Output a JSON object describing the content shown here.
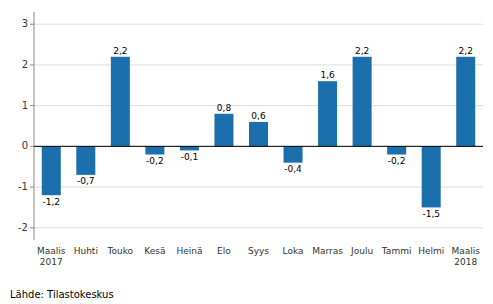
{
  "chart_data": {
    "type": "bar",
    "categories": [
      "Maalis\n2017",
      "Huhti",
      "Touko",
      "Kesä",
      "Heinä",
      "Elo",
      "Syys",
      "Loka",
      "Marras",
      "Joulu",
      "Tammi",
      "Helmi",
      "Maalis\n2018"
    ],
    "values": [
      -1.2,
      -0.7,
      2.2,
      -0.2,
      -0.1,
      0.8,
      0.6,
      -0.4,
      1.6,
      2.2,
      -0.2,
      -1.5,
      2.2
    ],
    "value_labels": [
      "-1,2",
      "-0,7",
      "2,2",
      "-0,2",
      "-0,1",
      "0,8",
      "0,6",
      "-0,4",
      "1,6",
      "2,2",
      "-0,2",
      "-1,5",
      "2,2"
    ],
    "data_labels": true,
    "color": "#1b6fac",
    "ylim": [
      -2.3,
      3.3
    ],
    "yticks": [
      -2,
      -1,
      0,
      1,
      2,
      3
    ],
    "grid": true,
    "annotations": [
      "Lähde: Tilastokeskus"
    ]
  }
}
